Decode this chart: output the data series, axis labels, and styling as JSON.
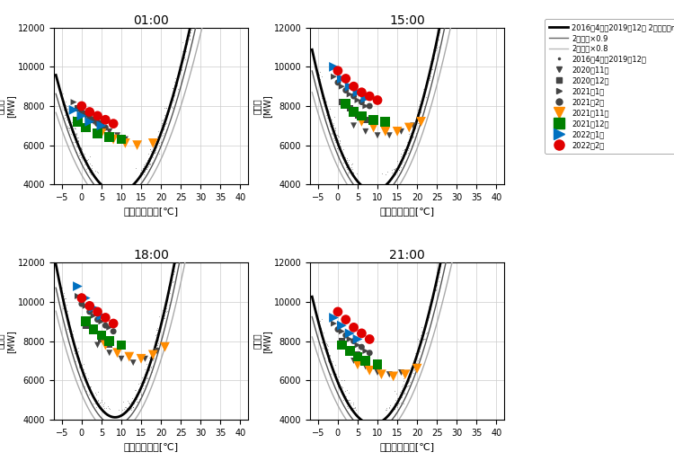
{
  "times": [
    "01:00",
    "15:00",
    "18:00",
    "21:00"
  ],
  "xlabel": "気温（広島）[℃]",
  "xlim": [
    -7,
    42
  ],
  "ylim": [
    4000,
    12000
  ],
  "xticks": [
    -5,
    0,
    5,
    10,
    15,
    20,
    25,
    30,
    35,
    40
  ],
  "yticks": [
    4000,
    6000,
    8000,
    10000,
    12000
  ],
  "background_color": "#ffffff",
  "legend_lines": [
    {
      "label": "2016年4月～2019年12月 2次近似（n=693）",
      "color": "#000000",
      "lw": 2.0
    },
    {
      "label": "2次近似×0.9",
      "color": "#666666",
      "lw": 1.0
    },
    {
      "label": "2次近似×0.8",
      "color": "#bbbbbb",
      "lw": 1.0
    }
  ],
  "legend_scatter": [
    {
      "label": "2016年4月～2019年12月",
      "color": "#444444",
      "marker": ".",
      "ms": 3
    },
    {
      "label": "2020年11月",
      "color": "#444444",
      "marker": "v",
      "ms": 5
    },
    {
      "label": "2020年12月",
      "color": "#444444",
      "marker": "s",
      "ms": 5
    },
    {
      "label": "2021年1月",
      "color": "#444444",
      "marker": ">",
      "ms": 5
    },
    {
      "label": "2021年2月",
      "color": "#444444",
      "marker": "o",
      "ms": 5
    },
    {
      "label": "2021年11月",
      "color": "#ff8c00",
      "marker": "v",
      "ms": 8
    },
    {
      "label": "2021年12月",
      "color": "#008000",
      "marker": "s",
      "ms": 8
    },
    {
      "label": "2022年1月",
      "color": "#0070c0",
      "marker": ">",
      "ms": 8
    },
    {
      "label": "2022年2月",
      "color": "#e00000",
      "marker": "o",
      "ms": 8
    }
  ],
  "poly_coeffs": {
    "01:00": [
      25.0,
      -450.0,
      5600.0
    ],
    "15:00": [
      30.0,
      -540.0,
      6100.0
    ],
    "18:00": [
      35.0,
      -590.0,
      6600.0
    ],
    "21:00": [
      28.0,
      -490.0,
      5900.0
    ]
  },
  "vertex_x": {
    "01:00": 9.0,
    "15:00": 9.0,
    "18:00": 8.4,
    "21:00": 8.75
  },
  "scatter_data": {
    "01:00": {
      "colored": [
        {
          "color": "#444444",
          "marker": "v",
          "size": 25,
          "pts": [
            [
              1,
              7500
            ],
            [
              3,
              7200
            ],
            [
              5,
              6900
            ],
            [
              7,
              6700
            ],
            [
              9,
              6500
            ],
            [
              11,
              6300
            ]
          ]
        },
        {
          "color": "#444444",
          "marker": "s",
          "size": 25,
          "pts": [
            [
              -1,
              7900
            ],
            [
              1,
              7600
            ],
            [
              3,
              7300
            ],
            [
              5,
              7100
            ]
          ]
        },
        {
          "color": "#444444",
          "marker": ">",
          "size": 25,
          "pts": [
            [
              -2,
              8200
            ],
            [
              0,
              7900
            ],
            [
              2,
              7600
            ],
            [
              4,
              7300
            ]
          ]
        },
        {
          "color": "#444444",
          "marker": "o",
          "size": 25,
          "pts": [
            [
              0,
              7700
            ],
            [
              2,
              7400
            ],
            [
              4,
              7100
            ],
            [
              6,
              6900
            ]
          ]
        },
        {
          "color": "#ff8c00",
          "marker": "v",
          "size": 60,
          "pts": [
            [
              5,
              6600
            ],
            [
              8,
              6300
            ],
            [
              11,
              6100
            ],
            [
              14,
              6000
            ],
            [
              18,
              6100
            ]
          ]
        },
        {
          "color": "#008000",
          "marker": "s",
          "size": 60,
          "pts": [
            [
              -1,
              7200
            ],
            [
              1,
              6900
            ],
            [
              4,
              6600
            ],
            [
              7,
              6400
            ],
            [
              10,
              6300
            ]
          ]
        },
        {
          "color": "#0070c0",
          "marker": ">",
          "size": 60,
          "pts": [
            [
              -2,
              7800
            ],
            [
              0,
              7500
            ],
            [
              2,
              7200
            ],
            [
              5,
              7000
            ]
          ]
        },
        {
          "color": "#e00000",
          "marker": "o",
          "size": 60,
          "pts": [
            [
              0,
              8000
            ],
            [
              2,
              7700
            ],
            [
              4,
              7500
            ],
            [
              6,
              7300
            ],
            [
              8,
              7100
            ]
          ]
        }
      ]
    },
    "15:00": {
      "colored": [
        {
          "color": "#444444",
          "marker": "v",
          "size": 25,
          "pts": [
            [
              4,
              7000
            ],
            [
              7,
              6700
            ],
            [
              10,
              6500
            ],
            [
              13,
              6500
            ],
            [
              16,
              6700
            ],
            [
              19,
              7000
            ]
          ]
        },
        {
          "color": "#444444",
          "marker": "s",
          "size": 25,
          "pts": [
            [
              1,
              8200
            ],
            [
              3,
              7900
            ],
            [
              5,
              7500
            ],
            [
              7,
              7300
            ]
          ]
        },
        {
          "color": "#444444",
          "marker": ">",
          "size": 25,
          "pts": [
            [
              -1,
              9500
            ],
            [
              1,
              9000
            ],
            [
              3,
              8600
            ],
            [
              5,
              8300
            ],
            [
              7,
              8000
            ]
          ]
        },
        {
          "color": "#444444",
          "marker": "o",
          "size": 25,
          "pts": [
            [
              0,
              9200
            ],
            [
              2,
              8800
            ],
            [
              4,
              8500
            ],
            [
              6,
              8200
            ],
            [
              8,
              8000
            ]
          ]
        },
        {
          "color": "#ff8c00",
          "marker": "v",
          "size": 60,
          "pts": [
            [
              6,
              7200
            ],
            [
              9,
              6900
            ],
            [
              12,
              6700
            ],
            [
              15,
              6700
            ],
            [
              18,
              6900
            ],
            [
              21,
              7200
            ]
          ]
        },
        {
          "color": "#008000",
          "marker": "s",
          "size": 60,
          "pts": [
            [
              2,
              8100
            ],
            [
              4,
              7700
            ],
            [
              6,
              7500
            ],
            [
              9,
              7300
            ],
            [
              12,
              7200
            ]
          ]
        },
        {
          "color": "#0070c0",
          "marker": ">",
          "size": 60,
          "pts": [
            [
              -1,
              10000
            ],
            [
              1,
              9400
            ],
            [
              3,
              9000
            ],
            [
              5,
              8700
            ],
            [
              7,
              8400
            ]
          ]
        },
        {
          "color": "#e00000",
          "marker": "o",
          "size": 60,
          "pts": [
            [
              0,
              9800
            ],
            [
              2,
              9400
            ],
            [
              4,
              9000
            ],
            [
              6,
              8700
            ],
            [
              8,
              8500
            ],
            [
              10,
              8300
            ]
          ]
        }
      ]
    },
    "18:00": {
      "colored": [
        {
          "color": "#444444",
          "marker": "v",
          "size": 25,
          "pts": [
            [
              4,
              7800
            ],
            [
              7,
              7400
            ],
            [
              10,
              7100
            ],
            [
              13,
              6900
            ],
            [
              16,
              7100
            ],
            [
              19,
              7500
            ]
          ]
        },
        {
          "color": "#444444",
          "marker": "s",
          "size": 25,
          "pts": [
            [
              1,
              8800
            ],
            [
              3,
              8500
            ],
            [
              5,
              8100
            ],
            [
              7,
              7800
            ]
          ]
        },
        {
          "color": "#444444",
          "marker": ">",
          "size": 25,
          "pts": [
            [
              -1,
              10300
            ],
            [
              1,
              9800
            ],
            [
              3,
              9300
            ],
            [
              5,
              9000
            ],
            [
              7,
              8700
            ]
          ]
        },
        {
          "color": "#444444",
          "marker": "o",
          "size": 25,
          "pts": [
            [
              0,
              9900
            ],
            [
              2,
              9500
            ],
            [
              4,
              9100
            ],
            [
              6,
              8800
            ],
            [
              8,
              8500
            ]
          ]
        },
        {
          "color": "#ff8c00",
          "marker": "v",
          "size": 60,
          "pts": [
            [
              6,
              7800
            ],
            [
              9,
              7400
            ],
            [
              12,
              7200
            ],
            [
              15,
              7100
            ],
            [
              18,
              7300
            ],
            [
              21,
              7700
            ]
          ]
        },
        {
          "color": "#008000",
          "marker": "s",
          "size": 60,
          "pts": [
            [
              1,
              9000
            ],
            [
              3,
              8600
            ],
            [
              5,
              8300
            ],
            [
              7,
              8000
            ],
            [
              10,
              7800
            ]
          ]
        },
        {
          "color": "#0070c0",
          "marker": ">",
          "size": 60,
          "pts": [
            [
              -1,
              10800
            ],
            [
              1,
              10200
            ],
            [
              3,
              9700
            ],
            [
              5,
              9300
            ]
          ]
        },
        {
          "color": "#e00000",
          "marker": "o",
          "size": 60,
          "pts": [
            [
              0,
              10200
            ],
            [
              2,
              9800
            ],
            [
              4,
              9500
            ],
            [
              6,
              9200
            ],
            [
              8,
              8900
            ]
          ]
        }
      ]
    },
    "21:00": {
      "colored": [
        {
          "color": "#444444",
          "marker": "v",
          "size": 25,
          "pts": [
            [
              4,
              7000
            ],
            [
              7,
              6700
            ],
            [
              10,
              6400
            ],
            [
              13,
              6300
            ],
            [
              16,
              6400
            ]
          ]
        },
        {
          "color": "#444444",
          "marker": "s",
          "size": 25,
          "pts": [
            [
              1,
              8000
            ],
            [
              3,
              7600
            ],
            [
              5,
              7300
            ],
            [
              7,
              7100
            ]
          ]
        },
        {
          "color": "#444444",
          "marker": ">",
          "size": 25,
          "pts": [
            [
              -1,
              8900
            ],
            [
              1,
              8500
            ],
            [
              3,
              8100
            ],
            [
              5,
              7800
            ],
            [
              7,
              7500
            ]
          ]
        },
        {
          "color": "#444444",
          "marker": "o",
          "size": 25,
          "pts": [
            [
              0,
              8600
            ],
            [
              2,
              8300
            ],
            [
              4,
              8000
            ],
            [
              6,
              7700
            ],
            [
              8,
              7400
            ]
          ]
        },
        {
          "color": "#ff8c00",
          "marker": "v",
          "size": 60,
          "pts": [
            [
              5,
              6800
            ],
            [
              8,
              6500
            ],
            [
              11,
              6300
            ],
            [
              14,
              6200
            ],
            [
              17,
              6300
            ],
            [
              20,
              6600
            ]
          ]
        },
        {
          "color": "#008000",
          "marker": "s",
          "size": 60,
          "pts": [
            [
              1,
              7800
            ],
            [
              3,
              7500
            ],
            [
              5,
              7200
            ],
            [
              7,
              7000
            ],
            [
              10,
              6800
            ]
          ]
        },
        {
          "color": "#0070c0",
          "marker": ">",
          "size": 60,
          "pts": [
            [
              -1,
              9200
            ],
            [
              1,
              8800
            ],
            [
              3,
              8400
            ],
            [
              5,
              8100
            ]
          ]
        },
        {
          "color": "#e00000",
          "marker": "o",
          "size": 60,
          "pts": [
            [
              0,
              9500
            ],
            [
              2,
              9100
            ],
            [
              4,
              8700
            ],
            [
              6,
              8400
            ],
            [
              8,
              8100
            ]
          ]
        }
      ]
    }
  }
}
